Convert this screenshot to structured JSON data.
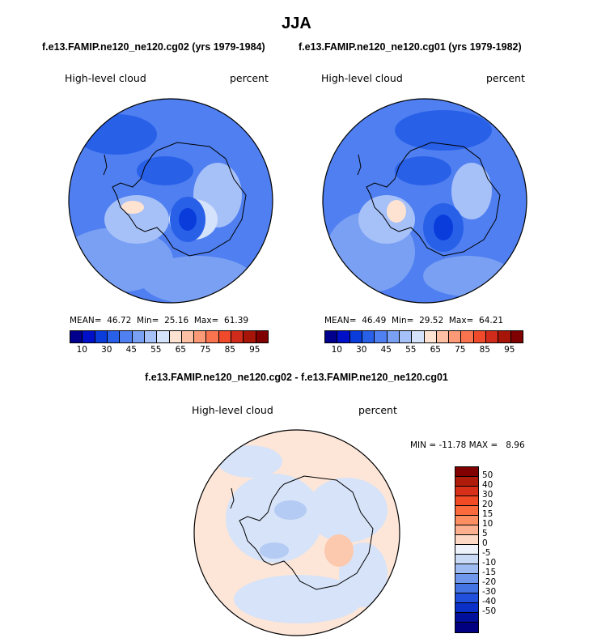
{
  "title": "JJA",
  "chart_data": [
    {
      "type": "heatmap",
      "title": "f.e13.FAMIP.ne120_ne120.cg02 (yrs 1979-1984)",
      "left_label": "High-level cloud",
      "right_label": "percent",
      "stats": {
        "mean_label": "MEAN=",
        "mean": "46.72",
        "min_label": "Min=",
        "min": "25.16",
        "max_label": "Max=",
        "max": "61.39"
      },
      "colorbar": {
        "colors": [
          "#00008c",
          "#0010c8",
          "#0a3cdc",
          "#2860e8",
          "#4f7ff0",
          "#7aa0f4",
          "#a6c0f8",
          "#d4e2fb",
          "#ffe3d2",
          "#fdc0a4",
          "#fc9a78",
          "#f9734e",
          "#ef4a2b",
          "#d02b1b",
          "#a71509",
          "#800000"
        ],
        "tick_labels": [
          "10",
          "30",
          "45",
          "55",
          "65",
          "75",
          "85",
          "95"
        ]
      }
    },
    {
      "type": "heatmap",
      "title": "f.e13.FAMIP.ne120_ne120.cg01 (yrs 1979-1982)",
      "left_label": "High-level cloud",
      "right_label": "percent",
      "stats": {
        "mean_label": "MEAN=",
        "mean": "46.49",
        "min_label": "Min=",
        "min": "29.52",
        "max_label": "Max=",
        "max": "64.21"
      },
      "colorbar": {
        "colors": [
          "#00008c",
          "#0010c8",
          "#0a3cdc",
          "#2860e8",
          "#4f7ff0",
          "#7aa0f4",
          "#a6c0f8",
          "#d4e2fb",
          "#ffe3d2",
          "#fdc0a4",
          "#fc9a78",
          "#f9734e",
          "#ef4a2b",
          "#d02b1b",
          "#a71509",
          "#800000"
        ],
        "tick_labels": [
          "10",
          "30",
          "45",
          "55",
          "65",
          "75",
          "85",
          "95"
        ]
      }
    },
    {
      "type": "heatmap",
      "title": "f.e13.FAMIP.ne120_ne120.cg02 - f.e13.FAMIP.ne120_ne120.cg01",
      "left_label": "High-level cloud",
      "right_label": "percent",
      "stats_text": "MIN = -11.78 MAX =   8.96",
      "colorbar": {
        "colors": [
          "#800000",
          "#b01c0c",
          "#d83018",
          "#f14a24",
          "#fa6a3c",
          "#fc8e62",
          "#fdb090",
          "#fdd8c4",
          "#eef2fb",
          "#c8daf6",
          "#9fbcf2",
          "#6f98ec",
          "#4474e4",
          "#2150dc",
          "#0a30c8",
          "#00109a",
          "#000080"
        ],
        "tick_labels": [
          "50",
          "40",
          "30",
          "20",
          "15",
          "10",
          "5",
          "0",
          "-5",
          "-10",
          "-15",
          "-20",
          "-30",
          "-40",
          "-50"
        ]
      }
    }
  ]
}
